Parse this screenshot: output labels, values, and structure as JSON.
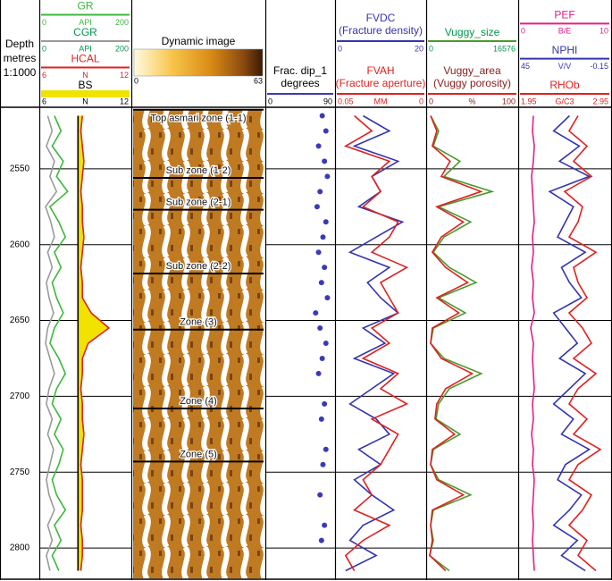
{
  "chart_data": {
    "type": "well-log",
    "depth_title": [
      "Depth",
      "metres",
      "1:1000"
    ],
    "ylim": [
      2510,
      2820
    ],
    "yticks": [
      2550,
      2600,
      2650,
      2700,
      2750,
      2800
    ],
    "depths": [
      2515,
      2525,
      2535,
      2545,
      2555,
      2565,
      2575,
      2585,
      2595,
      2605,
      2615,
      2625,
      2635,
      2645,
      2655,
      2665,
      2675,
      2685,
      2695,
      2705,
      2715,
      2725,
      2735,
      2745,
      2755,
      2765,
      2775,
      2785,
      2795,
      2805,
      2815
    ],
    "tracks": [
      {
        "curves": [
          {
            "name": "GR",
            "unit": "API",
            "xlim": [
              0,
              200
            ],
            "color": "#3cb83c",
            "style": "line",
            "values": [
              30,
              45,
              25,
              50,
              35,
              60,
              20,
              40,
              55,
              30,
              45,
              25,
              35,
              50,
              30,
              20,
              40,
              55,
              35,
              25,
              45,
              30,
              50,
              40,
              25,
              35,
              55,
              30,
              45,
              25,
              40
            ]
          },
          {
            "name": "CGR",
            "unit": "API",
            "xlim": [
              0,
              200
            ],
            "color": "#9a9a9a",
            "header_color": "#00994d",
            "style": "line",
            "values": [
              15,
              25,
              12,
              30,
              20,
              35,
              10,
              22,
              30,
              15,
              25,
              12,
              18,
              28,
              15,
              10,
              20,
              30,
              18,
              12,
              25,
              15,
              28,
              20,
              12,
              18,
              30,
              15,
              25,
              12,
              20
            ]
          },
          {
            "name": "HCAL",
            "unit": "N",
            "xlim": [
              6,
              12
            ],
            "color": "#e02020",
            "style": "line",
            "values": [
              8.8,
              8.7,
              8.8,
              8.9,
              8.8,
              8.7,
              8.8,
              8.8,
              8.9,
              8.8,
              8.7,
              8.8,
              8.8,
              9.4,
              10.6,
              9.2,
              8.8,
              8.8,
              8.7,
              8.8,
              8.8,
              8.9,
              8.8,
              8.7,
              8.8,
              8.8,
              8.8,
              8.7,
              8.8,
              8.8,
              8.7
            ]
          },
          {
            "name": "BS",
            "unit": "N",
            "xlim": [
              6,
              12
            ],
            "color": "#000000",
            "fill": "#f2e200",
            "style": "line",
            "values": [
              8.5,
              8.5,
              8.5,
              8.5,
              8.5,
              8.5,
              8.5,
              8.5,
              8.5,
              8.5,
              8.5,
              8.5,
              8.5,
              8.5,
              8.5,
              8.5,
              8.5,
              8.5,
              8.5,
              8.5,
              8.5,
              8.5,
              8.5,
              8.5,
              8.5,
              8.5,
              8.5,
              8.5,
              8.5,
              8.5,
              8.5
            ]
          }
        ]
      },
      {
        "image": {
          "title": "Dynamic image",
          "colorbar": [
            0,
            63
          ],
          "zones": [
            {
              "name": "Top asmari zone (1-1)",
              "top": 2511
            },
            {
              "name": "Sub zone (1-2)",
              "top": 2556
            },
            {
              "name": "Sub zone (2-1)",
              "top": 2577
            },
            {
              "name": "Sub zone (2-2)",
              "top": 2619
            },
            {
              "name": "Zone (3)",
              "top": 2656
            },
            {
              "name": "Zone (4)",
              "top": 2708
            },
            {
              "name": "Zone (5)",
              "top": 2743
            }
          ]
        }
      },
      {
        "curves": [
          {
            "name": "Frac. dip_1",
            "description": "degrees",
            "xlim": [
              0,
              90
            ],
            "color": "#3a3ab8",
            "header_color": "#000000",
            "style": "dots",
            "values": [
              75,
              80,
              70,
              78,
              82,
              72,
              68,
              80,
              76,
              70,
              78,
              74,
              82,
              66,
              72,
              80,
              75,
              70,
              null,
              78,
              74,
              null,
              80,
              76,
              null,
              72,
              null,
              78,
              74,
              null,
              null
            ]
          }
        ]
      },
      {
        "curves": [
          {
            "name": "FVDC",
            "description": "(Fracture density)",
            "xlim": [
              0,
              20
            ],
            "color": "#3434b0",
            "style": "line",
            "values": [
              6,
              12,
              4,
              14,
              8,
              10,
              5,
              15,
              9,
              3,
              12,
              7,
              10,
              14,
              6,
              11,
              4,
              13,
              8,
              3,
              9,
              12,
              5,
              10,
              4,
              8,
              13,
              6,
              3,
              9,
              2
            ]
          },
          {
            "name": "FVAH",
            "description": "(Fracture aperture)",
            "unit": "MM",
            "xlim": [
              0.05,
              0
            ],
            "color": "#e02020",
            "style": "line",
            "values": [
              0.04,
              0.03,
              0.045,
              0.02,
              0.03,
              0.025,
              0.035,
              0.015,
              0.02,
              0.03,
              0.01,
              0.025,
              0.02,
              0.015,
              0.03,
              0.02,
              0.035,
              0.015,
              0.025,
              0.01,
              0.03,
              0.015,
              0.02,
              0.025,
              0.035,
              0.03,
              0.04,
              0.02,
              0.035,
              0.045,
              0.04
            ]
          }
        ]
      },
      {
        "curves": [
          {
            "name": "Vuggy_size",
            "xlim": [
              0,
              16576
            ],
            "color": "#4a9a2a",
            "header_color": "#00994d",
            "style": "line",
            "values": [
              500,
              2000,
              1000,
              6000,
              3000,
              12000,
              2000,
              8000,
              3000,
              1000,
              4000,
              9000,
              2000,
              7000,
              1000,
              500,
              3000,
              10000,
              4000,
              2000,
              1500,
              6000,
              1000,
              500,
              2000,
              8000,
              1000,
              500,
              1000,
              300,
              4000
            ]
          },
          {
            "name": "Vuggy_area",
            "description": "(Vuggy porosity)",
            "unit": "%",
            "xlim": [
              0,
              100
            ],
            "color": "#e02020",
            "header_color": "#8a1a1a",
            "style": "line",
            "values": [
              3,
              10,
              5,
              25,
              15,
              60,
              10,
              40,
              15,
              5,
              20,
              45,
              10,
              35,
              5,
              3,
              15,
              50,
              20,
              10,
              8,
              30,
              5,
              3,
              10,
              40,
              5,
              3,
              5,
              2,
              20
            ]
          }
        ]
      },
      {
        "curves": [
          {
            "name": "PEF",
            "unit": "B/E",
            "xlim": [
              0,
              10
            ],
            "color": "#e0208a",
            "style": "line",
            "values": [
              1.5,
              1.4,
              1.6,
              1.5,
              1.3,
              1.4,
              1.5,
              1.6,
              1.4,
              1.5,
              1.3,
              1.5,
              1.4,
              1.6,
              1.2,
              1.5,
              1.4,
              1.5,
              1.6,
              1.4,
              1.5,
              1.3,
              1.5,
              1.4,
              1.6,
              1.5,
              1.4,
              1.5,
              1.4,
              1.5,
              1.6
            ]
          },
          {
            "name": "NPHI",
            "unit": "V/V",
            "xlim": [
              45,
              -0.15
            ],
            "color": "#3434b0",
            "style": "line",
            "values": [
              20,
              28,
              15,
              25,
              10,
              30,
              18,
              22,
              26,
              12,
              24,
              20,
              14,
              28,
              22,
              16,
              25,
              12,
              20,
              28,
              18,
              24,
              10,
              22,
              26,
              14,
              20,
              28,
              16,
              24,
              12
            ]
          },
          {
            "name": "RHOb",
            "unit": "G/C3",
            "xlim": [
              1.95,
              2.95
            ],
            "color": "#e02020",
            "style": "line",
            "values": [
              2.6,
              2.5,
              2.7,
              2.55,
              2.75,
              2.45,
              2.65,
              2.6,
              2.5,
              2.8,
              2.55,
              2.6,
              2.7,
              2.5,
              2.65,
              2.75,
              2.55,
              2.8,
              2.6,
              2.5,
              2.7,
              2.55,
              2.85,
              2.6,
              2.5,
              2.75,
              2.65,
              2.5,
              2.7,
              2.6,
              2.8
            ]
          }
        ]
      }
    ]
  }
}
